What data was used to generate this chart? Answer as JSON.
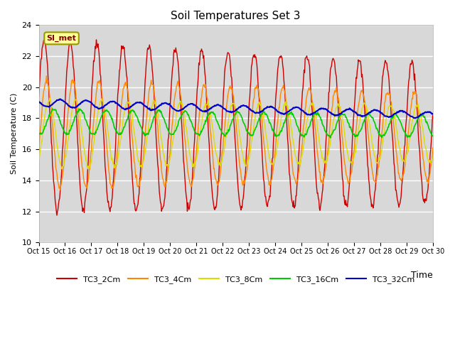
{
  "title": "Soil Temperatures Set 3",
  "xlabel": "Time",
  "ylabel": "Soil Temperature (C)",
  "ylim": [
    10,
    24
  ],
  "bg_color": "#d8d8d8",
  "grid_color": "white",
  "tick_labels": [
    "Oct 15",
    "Oct 16",
    "Oct 17",
    "Oct 18",
    "Oct 19",
    "Oct 20",
    "Oct 21",
    "Oct 22",
    "Oct 23",
    "Oct 24",
    "Oct 25",
    "Oct 26",
    "Oct 27",
    "Oct 28",
    "Oct 29",
    "Oct 30"
  ],
  "colors": {
    "TC3_2Cm": "#cc0000",
    "TC3_4Cm": "#ff8800",
    "TC3_8Cm": "#dddd00",
    "TC3_16Cm": "#00cc00",
    "TC3_32Cm": "#0000cc"
  },
  "annotation_text": "SI_met",
  "annotation_bg": "#ffff99",
  "annotation_border": "#999900",
  "n_days": 15,
  "pts_per_day": 48,
  "yticks": [
    10,
    12,
    14,
    16,
    18,
    20,
    22,
    24
  ]
}
